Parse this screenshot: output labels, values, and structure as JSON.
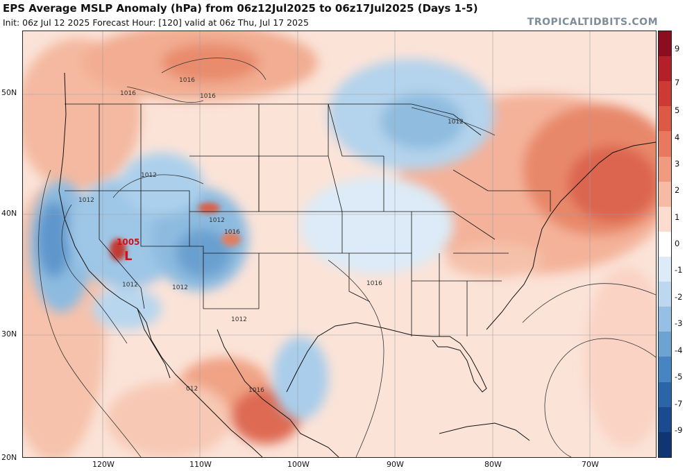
{
  "header": {
    "title": "EPS Average MSLP Anomaly (hPa) from 06z12Jul2025 to 06z17Jul2025 (Days 1-5)",
    "subtitle": "Init: 06z Jul 12 2025   Forecast Hour: [120]   valid at 06z Thu, Jul 17 2025",
    "credit": "TROPICALTIDBITS.COM"
  },
  "map": {
    "lat_labels": [
      "50N",
      "40N",
      "30N",
      "20N"
    ],
    "lon_labels": [
      "120W",
      "110W",
      "100W",
      "90W",
      "80W",
      "70W"
    ],
    "low_center": {
      "symbol": "L",
      "value": "1005"
    },
    "isobar_labels": [
      "1016",
      "1016",
      "1016",
      "1012",
      "1012",
      "1012",
      "1012",
      "1012",
      "1016",
      "1016",
      "1012",
      "1016",
      "1012",
      "012"
    ]
  },
  "colorbar": {
    "labels": [
      "9",
      "7",
      "5",
      "4",
      "3",
      "2",
      "1",
      "0",
      "-1",
      "-2",
      "-3",
      "-4",
      "-5",
      "-7",
      "-9"
    ],
    "colors": [
      "#8c0d1f",
      "#b3202a",
      "#cc3a33",
      "#dc5a45",
      "#e8795f",
      "#f09a80",
      "#f6bba4",
      "#fbdccf",
      "#ffffff",
      "#dcebf7",
      "#bcd7ee",
      "#95c0e3",
      "#6ca3d3",
      "#4684c2",
      "#2a64a9",
      "#1a4a8f",
      "#0f3573"
    ]
  }
}
